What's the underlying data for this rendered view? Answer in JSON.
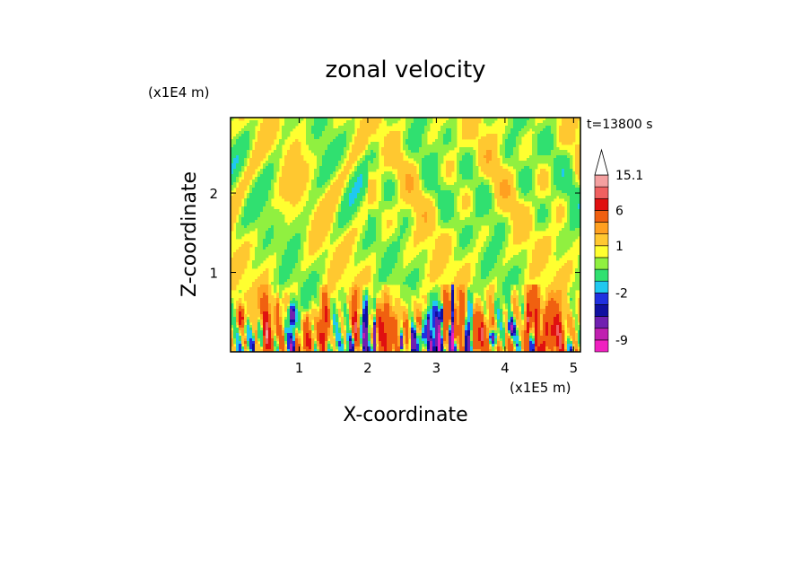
{
  "chart_data": {
    "type": "heatmap",
    "title": "zonal velocity",
    "time_label": "t=13800 s",
    "xlabel": "X-coordinate",
    "ylabel": "Z-coordinate",
    "x_unit": "(x1E5 m)",
    "y_unit": "(x1E4 m)",
    "xlim": [
      0,
      5.1
    ],
    "ylim": [
      0,
      2.95
    ],
    "xticks": [
      1,
      2,
      3,
      4,
      5
    ],
    "yticks": [
      1,
      2
    ],
    "colorbar": {
      "labeled_values": [
        "15.1",
        "6",
        "1",
        "-2",
        "-9"
      ],
      "levels": [
        {
          "from": null,
          "to": -9,
          "color": "#f020c0"
        },
        {
          "from": -9,
          "to": -6,
          "color": "#c020b0"
        },
        {
          "from": -6,
          "to": -4,
          "color": "#7020b0"
        },
        {
          "from": -4,
          "to": -3,
          "color": "#1010a0"
        },
        {
          "from": -3,
          "to": -2,
          "color": "#2030e0"
        },
        {
          "from": -2,
          "to": -1,
          "color": "#20c8f0"
        },
        {
          "from": -1,
          "to": 0,
          "color": "#30e070"
        },
        {
          "from": 0,
          "to": 0.5,
          "color": "#90f040"
        },
        {
          "from": 0.5,
          "to": 1,
          "color": "#ffff30"
        },
        {
          "from": 1,
          "to": 2,
          "color": "#ffc830"
        },
        {
          "from": 2,
          "to": 3,
          "color": "#ffa020"
        },
        {
          "from": 3,
          "to": 6,
          "color": "#f06010"
        },
        {
          "from": 6,
          "to": 9,
          "color": "#e01010"
        },
        {
          "from": 9,
          "to": 12,
          "color": "#f06060"
        },
        {
          "from": 12,
          "to": 15.1,
          "color": "#f4a0a0"
        },
        {
          "from": 15.1,
          "to": null,
          "color": "#ffffff"
        }
      ]
    }
  }
}
